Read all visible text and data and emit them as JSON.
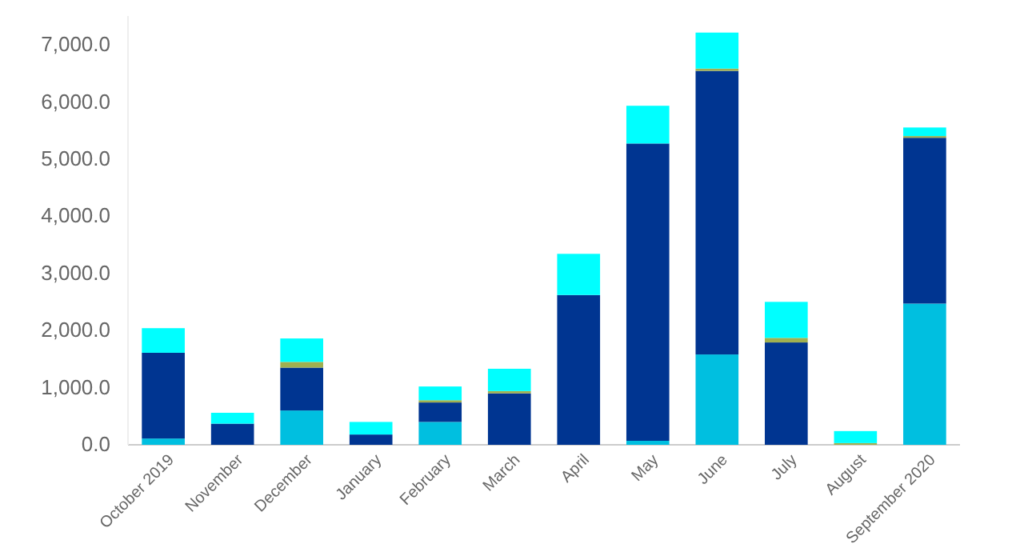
{
  "chart_data": {
    "type": "bar",
    "stacked": true,
    "categories": [
      "October 2019",
      "November",
      "December",
      "January",
      "February",
      "March",
      "April",
      "May",
      "June",
      "July",
      "August",
      "September 2020"
    ],
    "series": [
      {
        "color": "#00bfe0",
        "values": [
          110,
          0,
          600,
          0,
          400,
          0,
          0,
          70,
          1580,
          0,
          0,
          2470
        ]
      },
      {
        "color": "#003591",
        "values": [
          1500,
          370,
          750,
          180,
          340,
          900,
          2620,
          5200,
          4960,
          1790,
          0,
          2900
        ]
      },
      {
        "color": "#a0b050",
        "values": [
          0,
          0,
          100,
          0,
          40,
          40,
          0,
          0,
          40,
          80,
          30,
          30
        ]
      },
      {
        "color": "#00ffff",
        "values": [
          430,
          190,
          410,
          220,
          240,
          390,
          720,
          660,
          630,
          630,
          210,
          150
        ]
      }
    ],
    "ylim": [
      0,
      7500
    ],
    "yticks": [
      {
        "value": 0,
        "label": "0.0"
      },
      {
        "value": 1000,
        "label": "1,000.0"
      },
      {
        "value": 2000,
        "label": "2,000.0"
      },
      {
        "value": 3000,
        "label": "3,000.0"
      },
      {
        "value": 4000,
        "label": "4,000.0"
      },
      {
        "value": 5000,
        "label": "5,000.0"
      },
      {
        "value": 6000,
        "label": "6,000.0"
      },
      {
        "value": 7000,
        "label": "7,000.0"
      }
    ],
    "grid": false
  }
}
